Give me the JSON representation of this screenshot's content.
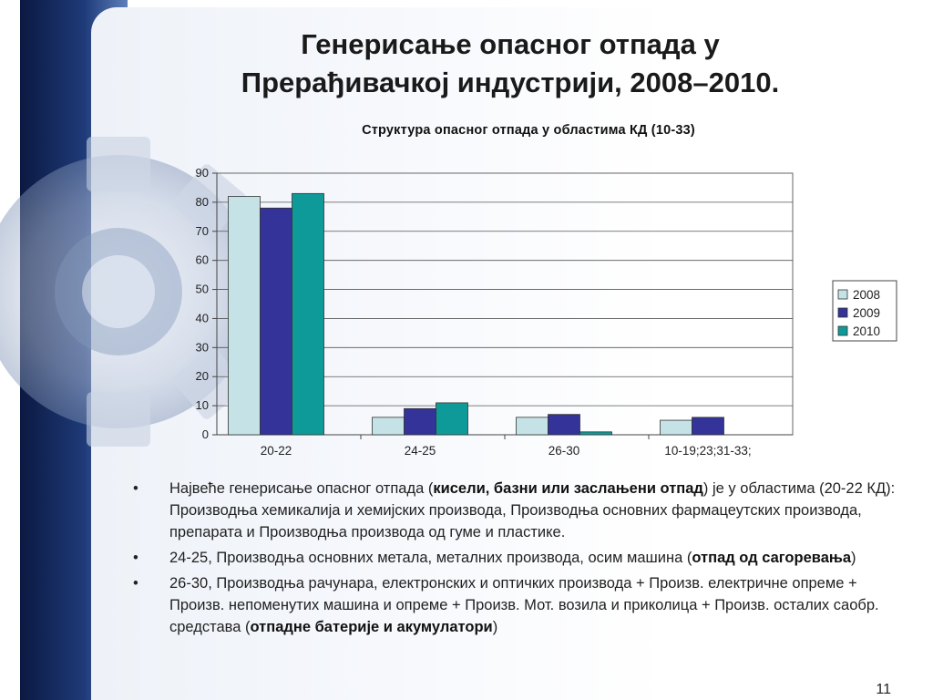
{
  "slide": {
    "title_line1": "Генерисање опасног отпада у",
    "title_line2": "Прерађивачкој индустрији, 2008–2010.",
    "page_number": "11"
  },
  "chart_data": {
    "type": "bar",
    "title": "Структура опасног отпада у областима КД (10-33)",
    "categories": [
      "20-22",
      "24-25",
      "26-30",
      "10-19;23;31-33;"
    ],
    "series": [
      {
        "name": "2008",
        "color": "#c5e3e6",
        "values": [
          82,
          6,
          6,
          5
        ]
      },
      {
        "name": "2009",
        "color": "#333399",
        "values": [
          78,
          9,
          7,
          6
        ]
      },
      {
        "name": "2010",
        "color": "#0f9a9a",
        "values": [
          83,
          11,
          1,
          0
        ]
      }
    ],
    "ylim": [
      0,
      90
    ],
    "yticks": [
      0,
      10,
      20,
      30,
      40,
      50,
      60,
      70,
      80,
      90
    ],
    "xlabel": "",
    "ylabel": "",
    "grid": true,
    "legend": "right"
  },
  "bullets": [
    {
      "parts": [
        {
          "text": "Највеће генерисање опасног отпада (",
          "bold": false
        },
        {
          "text": "кисели, базни или заслањени отпад",
          "bold": true
        },
        {
          "text": ") је у областима (20-22 КД): Производња хемикалија и хемијских производа, Производња основних фармацеутских производа, препарата и Производња производа од гуме и пластике.",
          "bold": false
        }
      ]
    },
    {
      "parts": [
        {
          "text": "24-25, Производња основних метала, металних производа, осим машина (",
          "bold": false
        },
        {
          "text": "отпад од сагоревања",
          "bold": true
        },
        {
          "text": ")",
          "bold": false
        }
      ]
    },
    {
      "parts": [
        {
          "text": "26-30, Производња рачунара, електронских и оптичких производа + Произв. електричне опреме + Произв. непоменутих машина и опреме + Произв. Мот. возила и приколица + Произв. осталих саобр. средстава (",
          "bold": false
        },
        {
          "text": "отпадне батерије и акумулатори",
          "bold": true
        },
        {
          "text": ")",
          "bold": false
        }
      ]
    }
  ]
}
